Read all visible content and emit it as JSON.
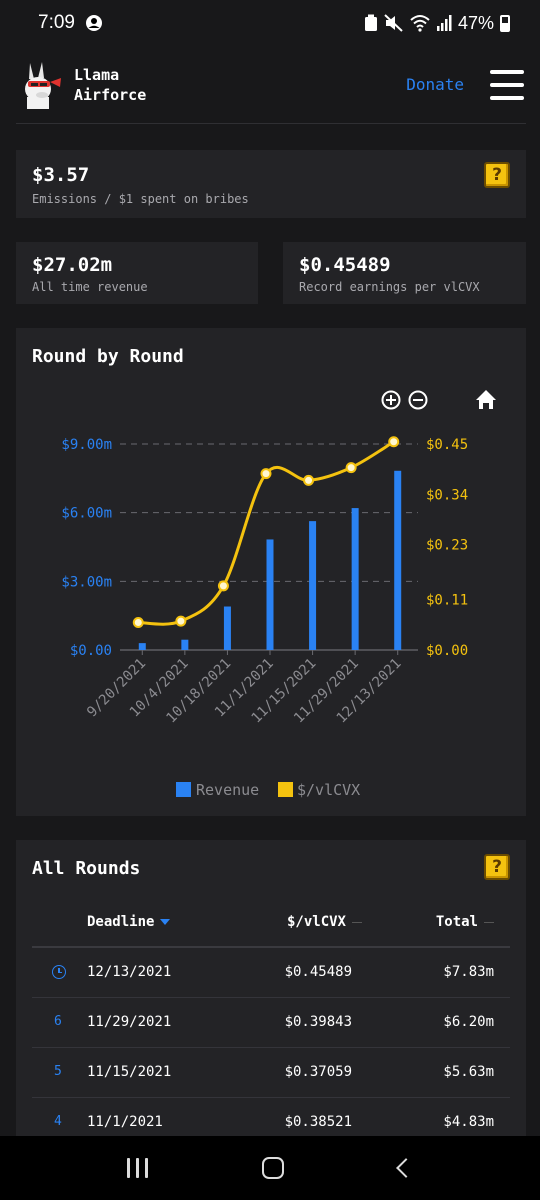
{
  "status_bar": {
    "time": "7:09",
    "battery": "47%"
  },
  "header": {
    "app_name": "Llama\nAirforce",
    "donate": "Donate"
  },
  "stats": {
    "emissions": {
      "value": "$3.57",
      "label": "Emissions / $1 spent on bribes"
    },
    "revenue": {
      "value": "$27.02m",
      "label": "All time revenue"
    },
    "record": {
      "value": "$0.45489",
      "label": "Record earnings per vlCVX"
    }
  },
  "round_chart": {
    "title": "Round by Round",
    "legend": [
      "Revenue",
      "$/vlCVX"
    ],
    "colors": {
      "revenue": "#2a82f3",
      "vlcvx": "#f4c20f"
    }
  },
  "chart_data": {
    "type": "bar",
    "categories": [
      "9/20/2021",
      "10/4/2021",
      "10/18/2021",
      "11/1/2021",
      "11/15/2021",
      "11/29/2021",
      "12/13/2021"
    ],
    "series": [
      {
        "name": "Revenue",
        "type": "bar",
        "axis": "left",
        "values": [
          0.3,
          0.45,
          1.9,
          4.83,
          5.63,
          6.2,
          7.83
        ],
        "unit": "millions USD"
      },
      {
        "name": "$/vlCVX",
        "type": "line",
        "axis": "right",
        "values": [
          0.06,
          0.063,
          0.14,
          0.38521,
          0.37059,
          0.39843,
          0.45489
        ]
      }
    ],
    "y_left": {
      "ticks": [
        "$0.00",
        "$3.00m",
        "$6.00m",
        "$9.00m"
      ],
      "tick_values": [
        0,
        3,
        6,
        9
      ],
      "range": [
        0,
        9
      ]
    },
    "y_right": {
      "ticks": [
        "$0.00",
        "$0.11",
        "$0.23",
        "$0.34",
        "$0.45"
      ],
      "tick_values": [
        0,
        0.11,
        0.23,
        0.34,
        0.45
      ],
      "range": [
        0,
        0.45
      ]
    },
    "legend_position": "bottom",
    "grid": true
  },
  "rounds": {
    "title": "All Rounds",
    "columns": [
      "Deadline",
      "$/vlCVX",
      "Total"
    ],
    "rows": [
      {
        "index": "",
        "deadline": "12/13/2021",
        "vlcvx": "$0.45489",
        "total": "$7.83m"
      },
      {
        "index": "6",
        "deadline": "11/29/2021",
        "vlcvx": "$0.39843",
        "total": "$6.20m"
      },
      {
        "index": "5",
        "deadline": "11/15/2021",
        "vlcvx": "$0.37059",
        "total": "$5.63m"
      },
      {
        "index": "4",
        "deadline": "11/1/2021",
        "vlcvx": "$0.38521",
        "total": "$4.83m"
      }
    ]
  }
}
